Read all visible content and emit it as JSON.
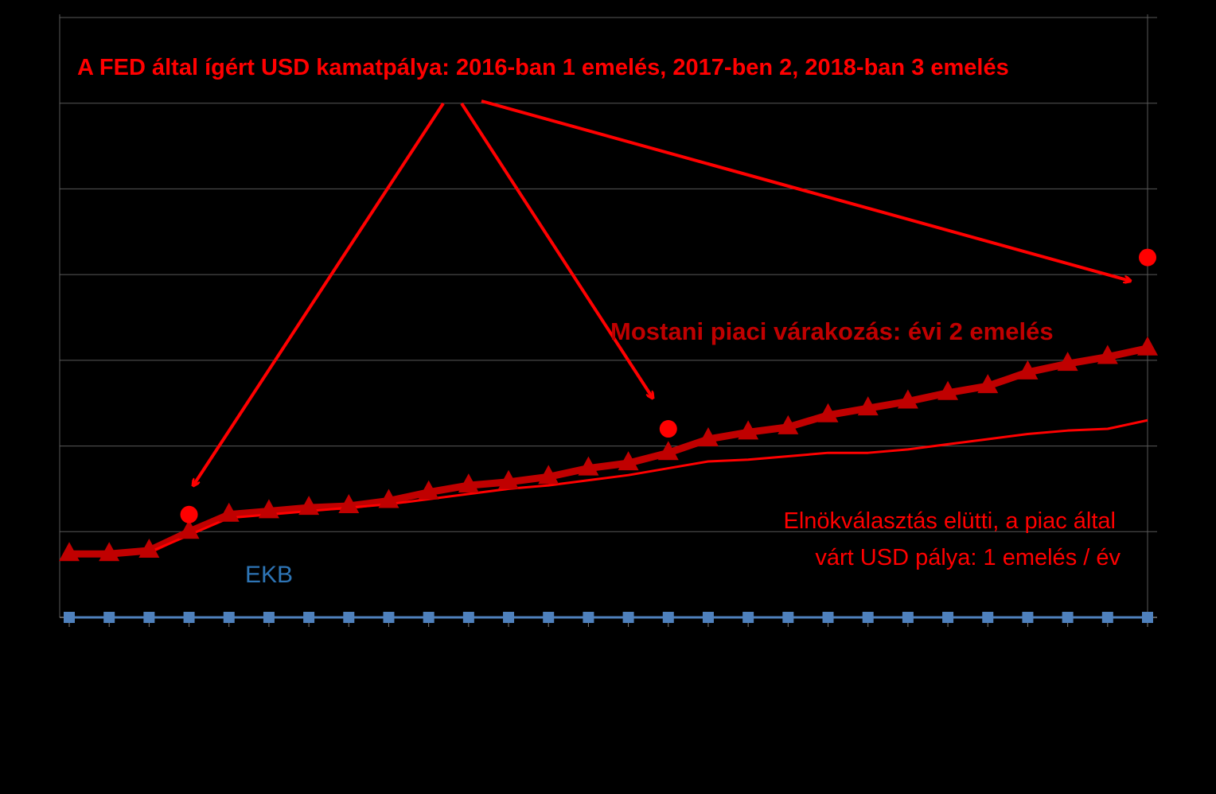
{
  "chart_data": {
    "type": "line",
    "title": "",
    "xlabel": "",
    "ylabel": "",
    "ylim": [
      0,
      3.5
    ],
    "grid": true,
    "x": [
      0,
      1,
      2,
      3,
      4,
      5,
      6,
      7,
      8,
      9,
      10,
      11,
      12,
      13,
      14,
      15,
      16,
      17,
      18,
      19,
      20,
      21,
      22,
      23,
      24,
      25,
      26,
      27
    ],
    "series": [
      {
        "name": "",
        "marker": "triangle",
        "color": "#c00000",
        "values": [
          0.37,
          0.37,
          0.39,
          0.5,
          0.6,
          0.62,
          0.64,
          0.65,
          0.68,
          0.73,
          0.77,
          0.79,
          0.82,
          0.87,
          0.9,
          0.96,
          1.04,
          1.08,
          1.11,
          1.18,
          1.22,
          1.26,
          1.31,
          1.35,
          1.43,
          1.48,
          1.52,
          1.57
        ]
      },
      {
        "name": "",
        "marker": "none",
        "color": "#ff0000",
        "values": [
          null,
          null,
          0.38,
          0.48,
          0.58,
          0.6,
          0.62,
          0.64,
          0.66,
          0.69,
          0.72,
          0.75,
          0.77,
          0.8,
          0.83,
          0.87,
          0.91,
          0.92,
          0.94,
          0.96,
          0.96,
          0.98,
          1.01,
          1.04,
          1.07,
          1.09,
          1.1,
          1.15
        ]
      },
      {
        "name": "EKB",
        "marker": "square",
        "color": "#4f81bd",
        "values": [
          0,
          0,
          0,
          0,
          0,
          0,
          0,
          0,
          0,
          0,
          0,
          0,
          0,
          0,
          0,
          0,
          0,
          0,
          0,
          0,
          0,
          0,
          0,
          0,
          0,
          0,
          0,
          0
        ]
      },
      {
        "name": "",
        "marker": "circle",
        "color": "#ff0000",
        "points": [
          [
            3,
            0.6
          ],
          [
            15,
            1.1
          ],
          [
            27,
            2.1
          ]
        ]
      }
    ],
    "annotations": [
      "A FED által ígért USD kamatpálya: 2016-ban 1 emelés, 2017-ben 2, 2018-ban 3 emelés",
      "Mostani piaci várakozás: évi 2 emelés",
      "Elnökválasztás elütti, a piac által",
      "várt USD pálya: 1 emelés / év",
      "EKB"
    ]
  }
}
